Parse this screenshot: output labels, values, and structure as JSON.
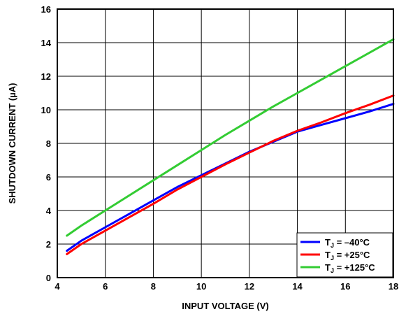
{
  "chart_data": {
    "type": "line",
    "title": "",
    "xlabel": "INPUT VOLTAGE (V)",
    "ylabel": "SHUTDOWN CURRENT (µA)",
    "xlim": [
      4,
      18
    ],
    "ylim": [
      0,
      16
    ],
    "xticks": [
      4,
      6,
      8,
      10,
      12,
      14,
      16,
      18
    ],
    "yticks": [
      0,
      2,
      4,
      6,
      8,
      10,
      12,
      14,
      16
    ],
    "grid": true,
    "legend_position": "bottom-right",
    "series": [
      {
        "name": "T",
        "name_sub": "J",
        "name_rest": " = –40°C",
        "color": "#0000ff",
        "x": [
          4.4,
          5,
          6,
          7,
          8,
          9,
          10,
          11,
          12,
          13,
          14,
          15,
          16,
          17,
          18
        ],
        "y": [
          1.6,
          2.2,
          3.0,
          3.8,
          4.6,
          5.4,
          6.1,
          6.8,
          7.5,
          8.1,
          8.7,
          9.1,
          9.5,
          9.9,
          10.35
        ]
      },
      {
        "name": "T",
        "name_sub": "J",
        "name_rest": " = +25°C",
        "color": "#ff0000",
        "x": [
          4.4,
          5,
          6,
          7,
          8,
          9,
          10,
          11,
          12,
          13,
          14,
          15,
          16,
          17,
          18
        ],
        "y": [
          1.4,
          2.0,
          2.8,
          3.6,
          4.4,
          5.25,
          6.0,
          6.75,
          7.45,
          8.15,
          8.75,
          9.25,
          9.8,
          10.3,
          10.85
        ]
      },
      {
        "name": "T",
        "name_sub": "J",
        "name_rest": " = +125°C",
        "color": "#33cc33",
        "x": [
          4.4,
          5,
          6,
          7,
          8,
          9,
          10,
          11,
          12,
          13,
          14,
          15,
          16,
          17,
          18
        ],
        "y": [
          2.5,
          3.1,
          4.0,
          4.9,
          5.8,
          6.7,
          7.6,
          8.5,
          9.35,
          10.2,
          11.0,
          11.8,
          12.6,
          13.4,
          14.2
        ]
      }
    ]
  }
}
